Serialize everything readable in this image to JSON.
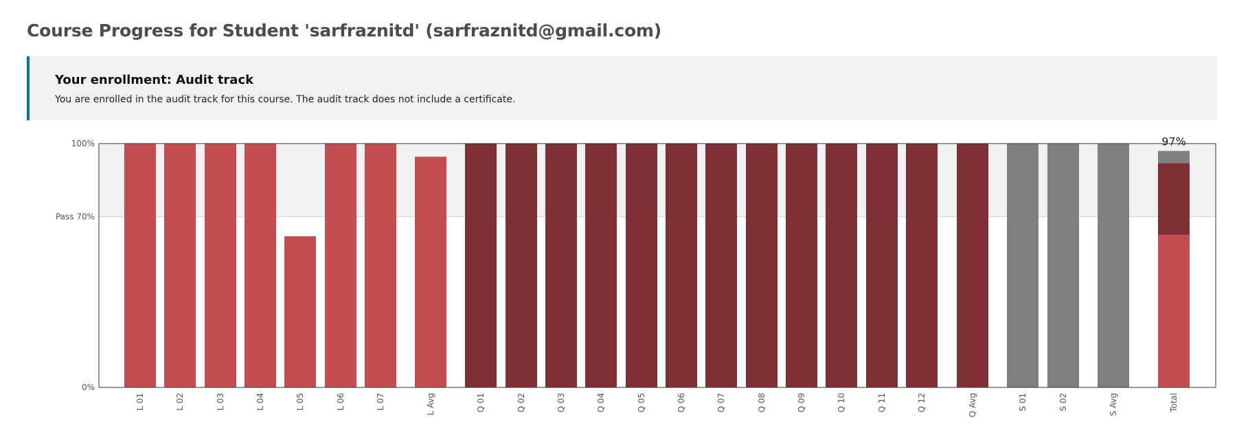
{
  "page": {
    "title": "Course Progress for Student 'sarfraznitd' (sarfraznitd@gmail.com)"
  },
  "enrollment": {
    "title": "Your enrollment: Audit track",
    "message": "You are enrolled in the audit track for this course. The audit track does not include a certificate."
  },
  "colors": {
    "lab": "#c44d4f",
    "quiz": "#7e3034",
    "survey": "#808080",
    "pass_region": "#f1f1f1",
    "enroll_border": "#0075b4"
  },
  "chart_data": {
    "type": "bar",
    "ylim": [
      0,
      100
    ],
    "y_ticks": [
      {
        "value": 0,
        "label": "0%"
      },
      {
        "value": 70,
        "label": "Pass 70%"
      },
      {
        "value": 100,
        "label": "100%"
      }
    ],
    "pass_threshold": 70,
    "categories": [
      "L 01",
      "L 02",
      "L 03",
      "L 04",
      "L 05",
      "L 06",
      "L 07",
      "L Avg",
      "Q 01",
      "Q 02",
      "Q 03",
      "Q 04",
      "Q 05",
      "Q 06",
      "Q 07",
      "Q 08",
      "Q 09",
      "Q 10",
      "Q 11",
      "Q 12",
      "Q Avg",
      "S 01",
      "S 02",
      "S Avg",
      "Total"
    ],
    "series_type": [
      "lab",
      "lab",
      "lab",
      "lab",
      "lab",
      "lab",
      "lab",
      "lab",
      "quiz",
      "quiz",
      "quiz",
      "quiz",
      "quiz",
      "quiz",
      "quiz",
      "quiz",
      "quiz",
      "quiz",
      "quiz",
      "quiz",
      "quiz",
      "survey",
      "survey",
      "survey",
      "total"
    ],
    "values": [
      100,
      100,
      100,
      100,
      62,
      100,
      100,
      94.6,
      100,
      100,
      100,
      100,
      100,
      100,
      100,
      100,
      100,
      100,
      100,
      100,
      100,
      100,
      100,
      100,
      97
    ],
    "total": {
      "label": "97%",
      "stack": [
        {
          "type": "lab",
          "value": 62.5
        },
        {
          "type": "quiz",
          "value": 29.5
        },
        {
          "type": "survey",
          "value": 5
        }
      ]
    }
  }
}
